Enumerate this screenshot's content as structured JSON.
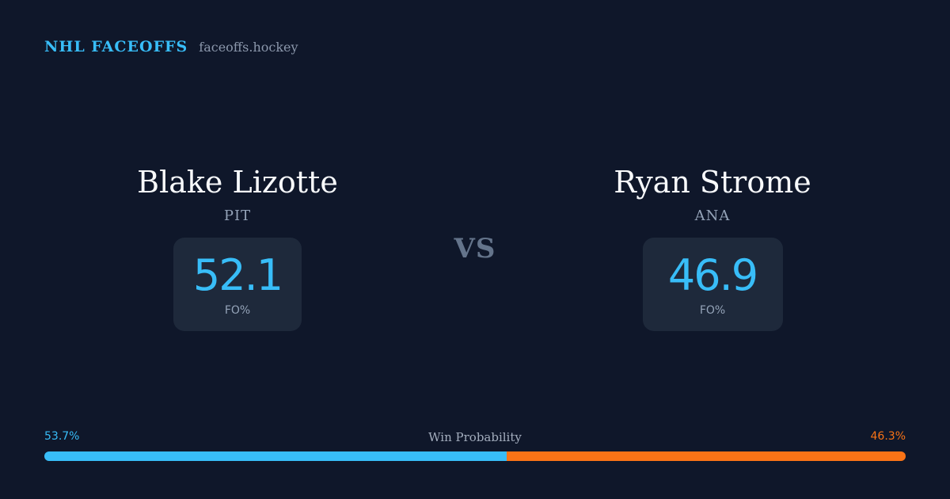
{
  "header": {
    "brand": "NHL FACEOFFS",
    "site": "faceoffs.hockey"
  },
  "players": [
    {
      "name": "Blake Lizotte",
      "team": "PIT",
      "stat_value": "52.1",
      "stat_label": "FO%"
    },
    {
      "name": "Ryan Strome",
      "team": "ANA",
      "stat_value": "46.9",
      "stat_label": "FO%"
    }
  ],
  "vs_label": "VS",
  "win_probability": {
    "title": "Win Probability",
    "left_label": "53.7%",
    "right_label": "46.3%",
    "left_value": 53.7,
    "right_value": 46.3,
    "left_color": "#38bdf8",
    "right_color": "#f97316"
  },
  "colors": {
    "background": "#0f172a",
    "card": "#1e293b",
    "accent": "#38bdf8"
  }
}
